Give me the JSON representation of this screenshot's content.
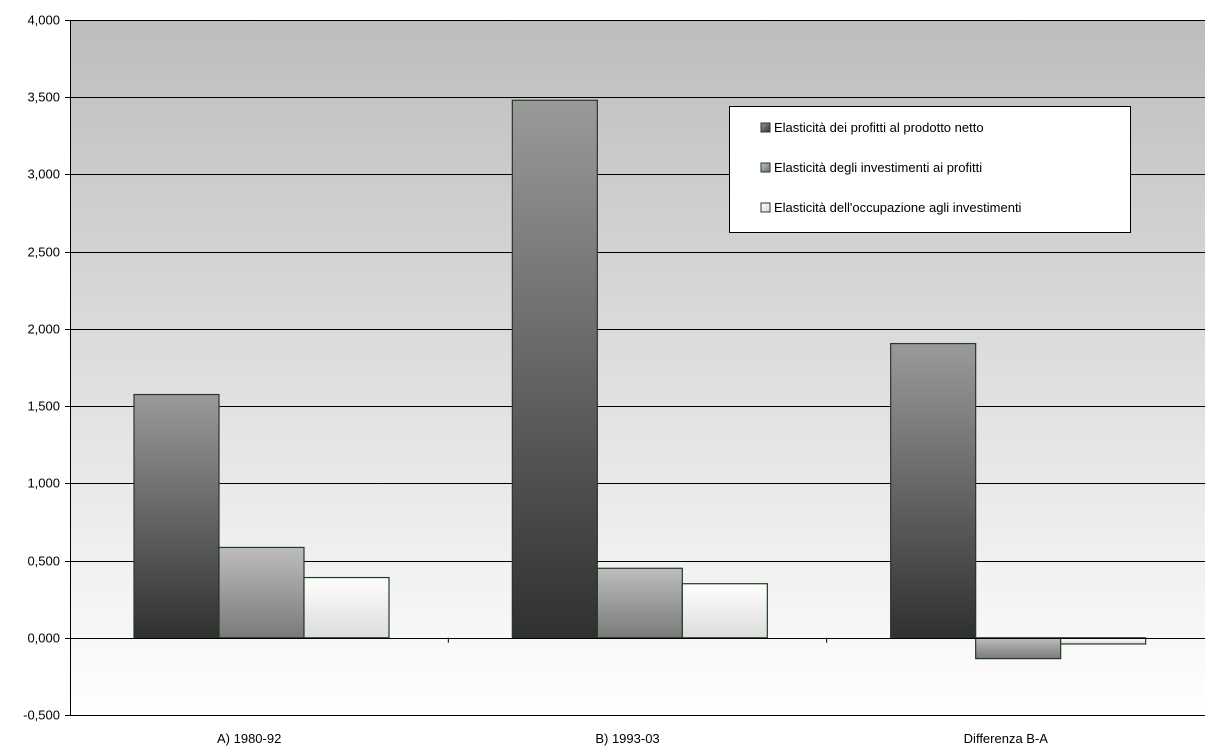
{
  "chart_data": {
    "type": "bar",
    "categories": [
      "A) 1980-92",
      "B) 1993-03",
      "Differenza B-A"
    ],
    "series": [
      {
        "name": "Elasticità dei profitti al  prodotto netto",
        "values": [
          1.575,
          3.48,
          1.905
        ],
        "color": "#4d4d4d"
      },
      {
        "name": "Elasticità degli investimenti ai profitti",
        "values": [
          0.585,
          0.45,
          -0.135
        ],
        "color": "#a6a6a6"
      },
      {
        "name": "Elasticità dell'occupazione agli investimenti",
        "values": [
          0.39,
          0.35,
          -0.04
        ],
        "color": "#f0f0f0"
      }
    ],
    "ylim": [
      -0.5,
      4.0
    ],
    "yticks": [
      -0.5,
      0.0,
      0.5,
      1.0,
      1.5,
      2.0,
      2.5,
      3.0,
      3.5,
      4.0
    ],
    "ytick_labels": [
      "-0,500",
      "0,000",
      "0,500",
      "1,000",
      "1,500",
      "2,000",
      "2,500",
      "3,000",
      "3,500",
      "4,000"
    ],
    "grid": true,
    "legend_position": "top-right",
    "title": "",
    "xlabel": "",
    "ylabel": ""
  }
}
